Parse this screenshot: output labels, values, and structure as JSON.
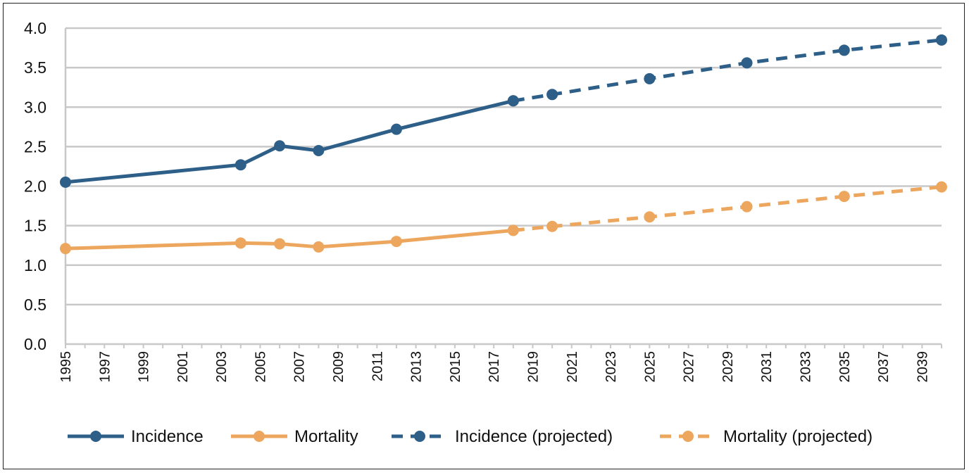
{
  "chart_data": {
    "type": "line",
    "title": "",
    "xlabel": "",
    "ylabel": "",
    "xlim": [
      1995,
      2040
    ],
    "ylim": [
      0,
      4
    ],
    "ytick_labels": [
      "0.0",
      "0.5",
      "1.0",
      "1.5",
      "2.0",
      "2.5",
      "3.0",
      "3.5",
      "4.0"
    ],
    "xtick_labels": [
      "1995",
      "1997",
      "1999",
      "2001",
      "2003",
      "2005",
      "2007",
      "2009",
      "2011",
      "2013",
      "2015",
      "2017",
      "2019",
      "2021",
      "2023",
      "2025",
      "2027",
      "2029",
      "2031",
      "2033",
      "2035",
      "2037",
      "2039"
    ],
    "grid": true,
    "legend_position": "bottom",
    "series": [
      {
        "name": "Incidence",
        "style": "solid",
        "color": "#2e5f88",
        "x": [
          1995,
          2004,
          2006,
          2008,
          2012,
          2018
        ],
        "y": [
          2.05,
          2.27,
          2.51,
          2.45,
          2.72,
          3.08
        ]
      },
      {
        "name": "Mortality",
        "style": "solid",
        "color": "#eda65e",
        "x": [
          1995,
          2004,
          2006,
          2008,
          2012,
          2018
        ],
        "y": [
          1.21,
          1.28,
          1.27,
          1.23,
          1.3,
          1.44
        ]
      },
      {
        "name": "Incidence (projected)",
        "style": "dashed",
        "color": "#2e5f88",
        "x": [
          2018,
          2020,
          2025,
          2030,
          2035,
          2040
        ],
        "y": [
          3.08,
          3.16,
          3.36,
          3.56,
          3.72,
          3.85
        ]
      },
      {
        "name": "Mortality (projected)",
        "style": "dashed",
        "color": "#eda65e",
        "x": [
          2018,
          2020,
          2025,
          2030,
          2035,
          2040
        ],
        "y": [
          1.44,
          1.49,
          1.61,
          1.74,
          1.87,
          1.99
        ]
      }
    ]
  }
}
